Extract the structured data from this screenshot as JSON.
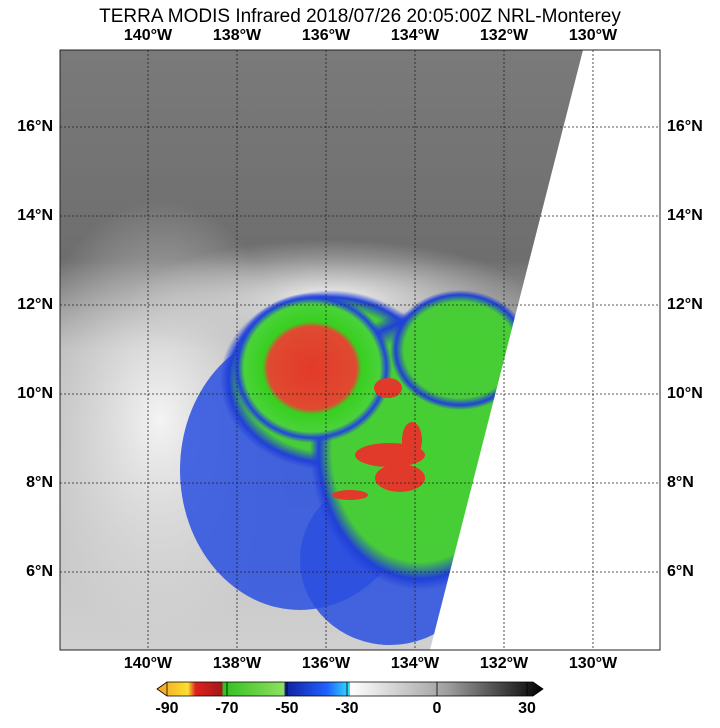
{
  "title": "TERRA MODIS Infrared 2018/07/26 20:05:00Z NRL-Monterey",
  "longitude_labels": [
    "140°W",
    "138°W",
    "136°W",
    "134°W",
    "132°W",
    "130°W"
  ],
  "latitude_labels": [
    "16°N",
    "14°N",
    "12°N",
    "10°N",
    "8°N",
    "6°N"
  ],
  "colorbar": {
    "ticks": [
      -90,
      -70,
      -50,
      -30,
      0,
      30
    ]
  }
}
